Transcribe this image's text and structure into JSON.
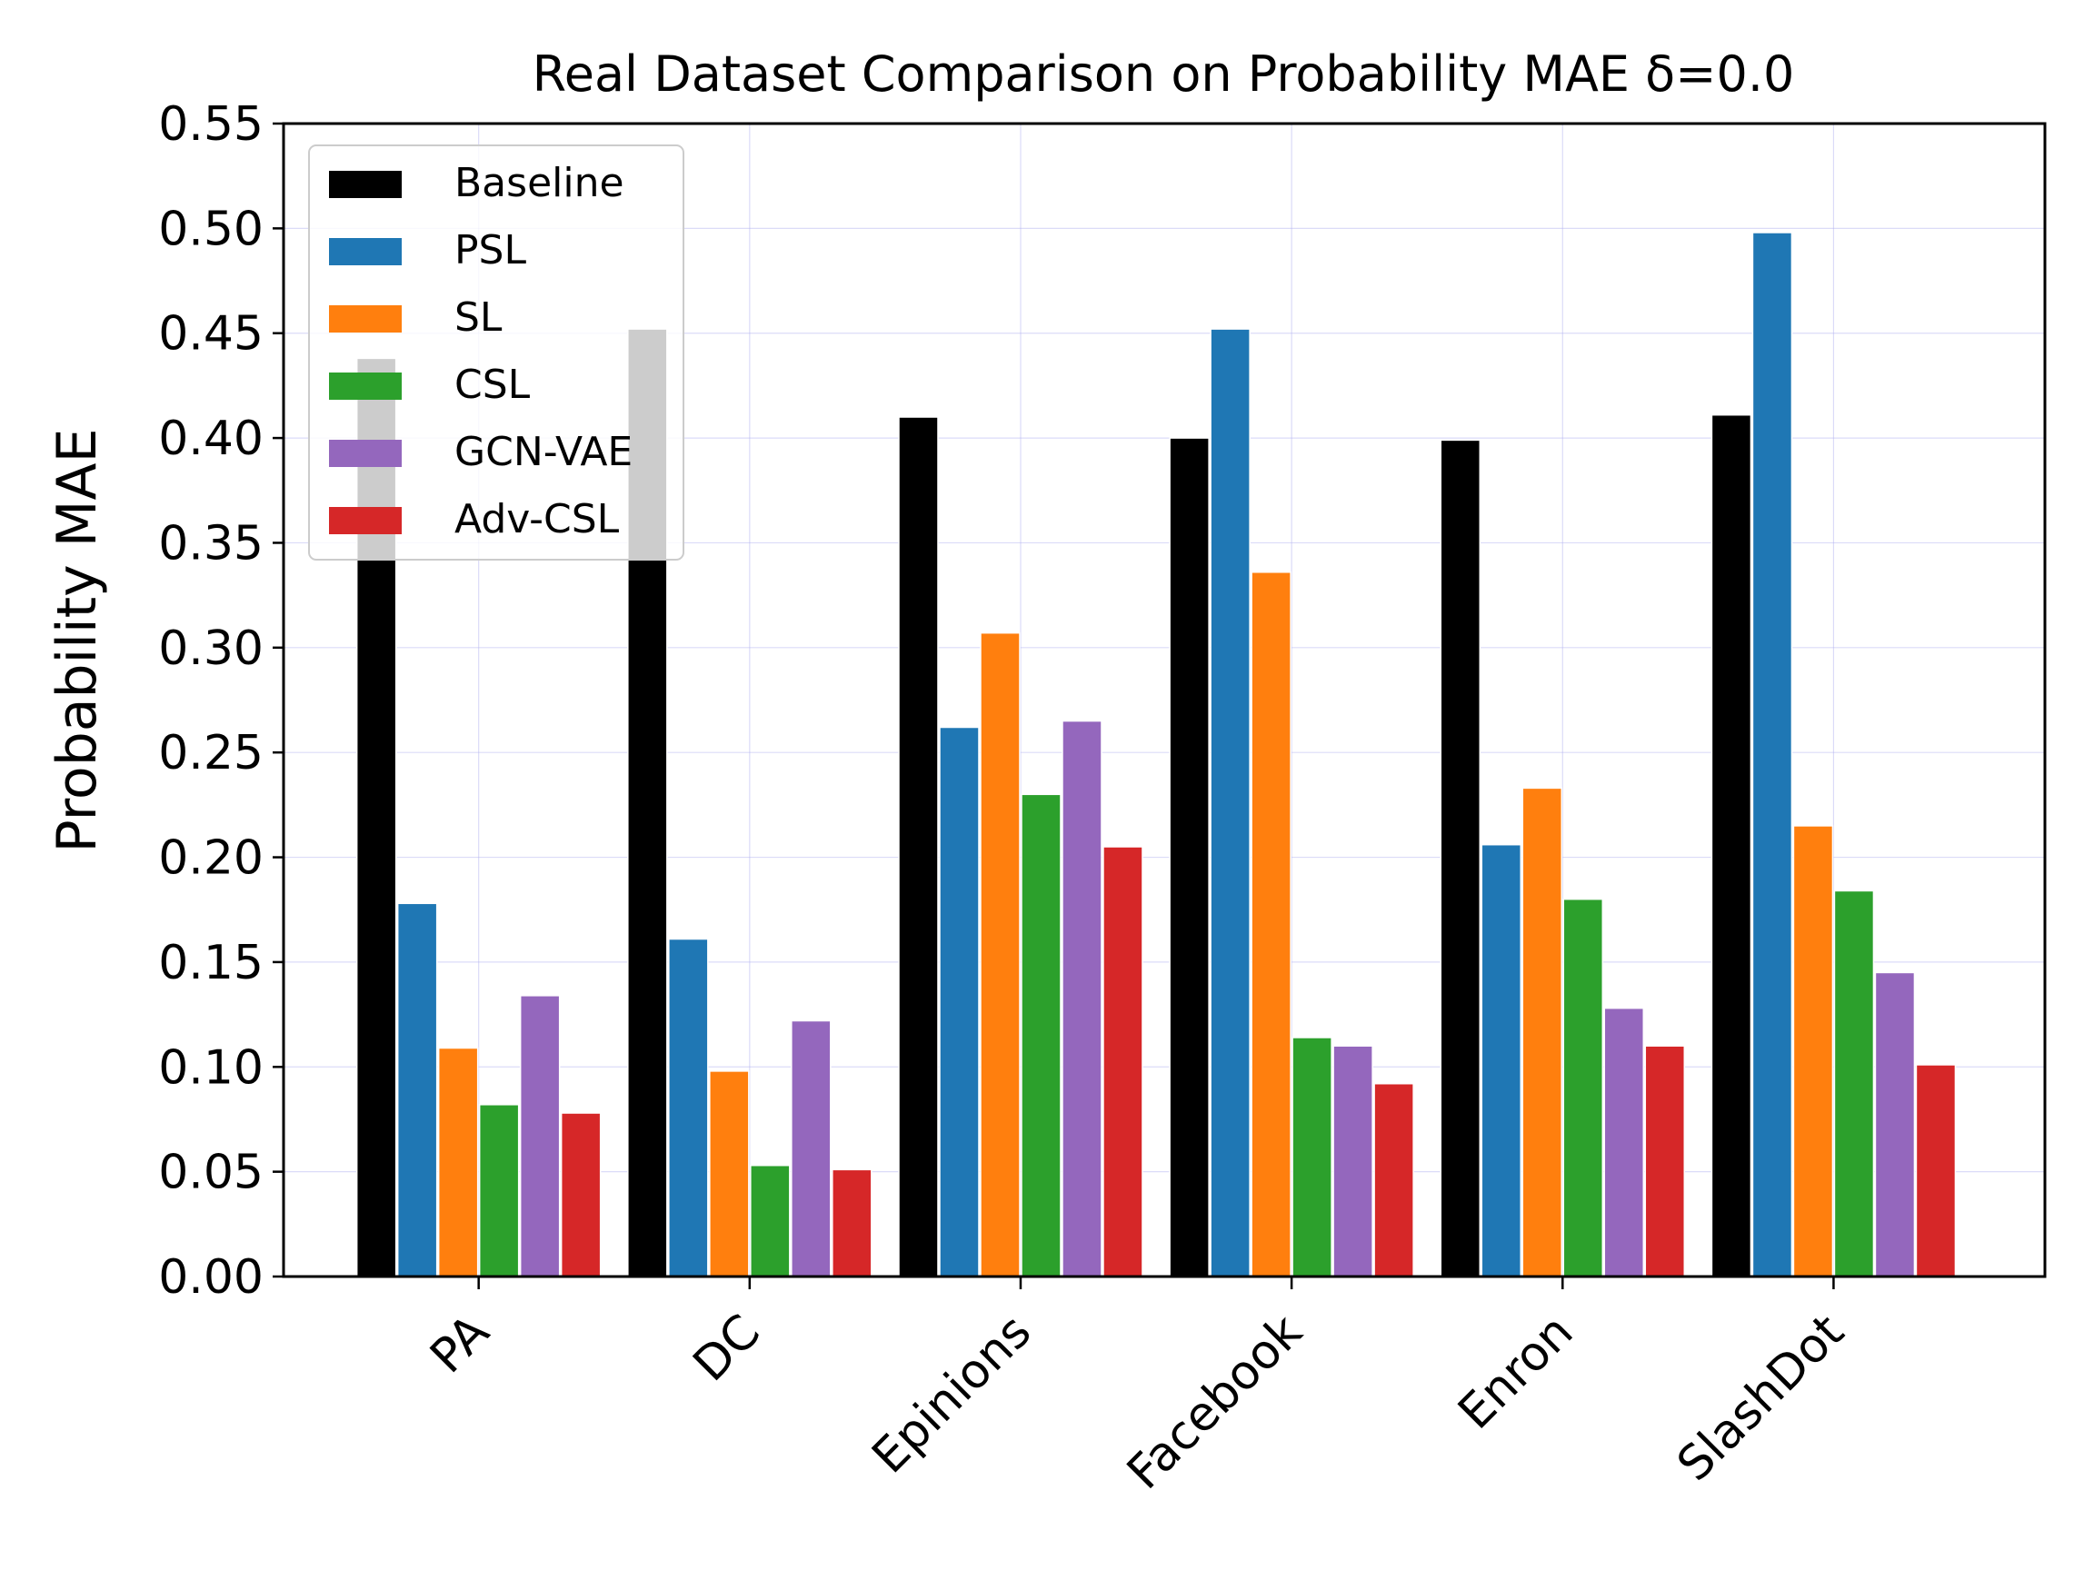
{
  "chart_data": {
    "type": "bar",
    "title": "Real Dataset Comparison on Probability MAE δ=0.0",
    "xlabel": "",
    "ylabel": "Probability MAE",
    "ylim": [
      0,
      0.55
    ],
    "yticks": [
      "0.00",
      "0.05",
      "0.10",
      "0.15",
      "0.20",
      "0.25",
      "0.30",
      "0.35",
      "0.40",
      "0.45",
      "0.50",
      "0.55"
    ],
    "grid": true,
    "legend_position": "top-left",
    "categories": [
      "PA",
      "DC",
      "Epinions",
      "Facebook",
      "Enron",
      "SlashDot"
    ],
    "series": [
      {
        "name": "Baseline",
        "color": "#000000",
        "values": [
          0.438,
          0.452,
          0.41,
          0.4,
          0.399,
          0.411
        ]
      },
      {
        "name": "PSL",
        "color": "#1f77b4",
        "values": [
          0.178,
          0.161,
          0.262,
          0.452,
          0.206,
          0.498
        ]
      },
      {
        "name": "SL",
        "color": "#ff7f0e",
        "values": [
          0.109,
          0.098,
          0.307,
          0.336,
          0.233,
          0.215
        ]
      },
      {
        "name": "CSL",
        "color": "#2ca02c",
        "values": [
          0.082,
          0.053,
          0.23,
          0.114,
          0.18,
          0.184
        ]
      },
      {
        "name": "GCN-VAE",
        "color": "#9467bd",
        "values": [
          0.134,
          0.122,
          0.265,
          0.11,
          0.128,
          0.145
        ]
      },
      {
        "name": "Adv-CSL",
        "color": "#d62728",
        "values": [
          0.078,
          0.051,
          0.205,
          0.092,
          0.11,
          0.101
        ]
      }
    ]
  }
}
